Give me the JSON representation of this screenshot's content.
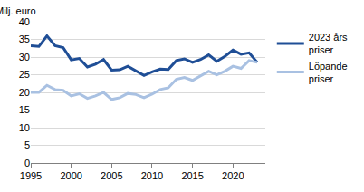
{
  "chart_data": {
    "type": "line",
    "y_label": "Milj. euro",
    "x": [
      1995,
      1996,
      1997,
      1998,
      1999,
      2000,
      2001,
      2002,
      2003,
      2004,
      2005,
      2006,
      2007,
      2008,
      2009,
      2010,
      2011,
      2012,
      2013,
      2014,
      2015,
      2016,
      2017,
      2018,
      2019,
      2020,
      2021,
      2022,
      2023
    ],
    "series": [
      {
        "name": "2023 års priser",
        "color": "#1f4e96",
        "values": [
          33.2,
          33.0,
          36.0,
          33.2,
          32.7,
          29.2,
          29.6,
          27.2,
          28.0,
          29.3,
          26.3,
          26.4,
          27.4,
          26.0,
          24.8,
          25.8,
          26.6,
          26.5,
          29.0,
          29.5,
          28.5,
          29.3,
          30.6,
          28.8,
          30.2,
          32.0,
          30.8,
          31.2,
          28.5
        ]
      },
      {
        "name": "Löpande priser",
        "color": "#a9c1e2",
        "values": [
          20.0,
          20.0,
          22.0,
          20.8,
          20.6,
          19.0,
          19.6,
          18.3,
          19.0,
          20.0,
          18.0,
          18.5,
          19.7,
          19.4,
          18.5,
          19.5,
          20.8,
          21.3,
          23.7,
          24.2,
          23.4,
          24.6,
          26.0,
          25.0,
          26.0,
          27.4,
          26.8,
          29.0,
          28.5
        ]
      }
    ],
    "xlim": [
      1995,
      2024
    ],
    "xticks": [
      1995,
      2000,
      2005,
      2010,
      2015,
      2020
    ],
    "ylim": [
      0,
      40
    ],
    "yticks": [
      0,
      5,
      10,
      15,
      20,
      25,
      30,
      35,
      40
    ],
    "grid": true,
    "legend": "right"
  }
}
